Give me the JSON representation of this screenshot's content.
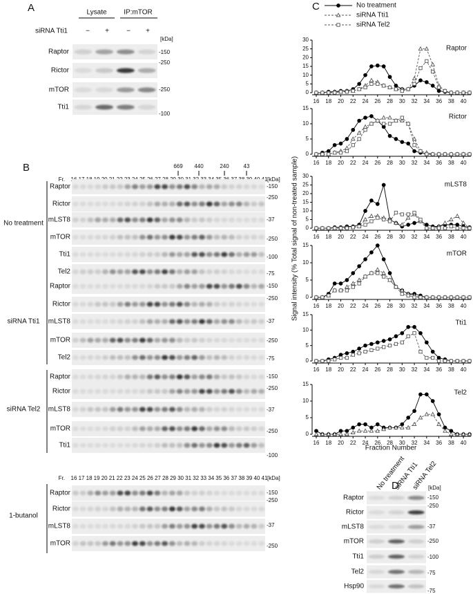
{
  "panel_a": {
    "label": "A",
    "groups": [
      "Lysate",
      "IP:mTOR"
    ],
    "condition": "siRNA Tti1",
    "signs": [
      "−",
      "+",
      "−",
      "+"
    ],
    "unit": "[kDa]",
    "rows": [
      "Raptor",
      "Rictor",
      "mTOR",
      "Tti1"
    ],
    "markers": [
      "-150",
      "-250",
      "-250",
      "-100"
    ]
  },
  "panel_b": {
    "label": "B",
    "size_markers": [
      "669",
      "440",
      "240",
      "43"
    ],
    "fraction_prefix": "Fr.",
    "fractions": [
      16,
      17,
      18,
      19,
      20,
      21,
      22,
      23,
      24,
      25,
      26,
      27,
      28,
      29,
      30,
      31,
      32,
      33,
      34,
      35,
      36,
      37,
      38,
      39,
      40,
      41
    ],
    "unit": "[kDa]",
    "groups": [
      {
        "name": "No treatment",
        "rows": [
          "Raptor",
          "Rictor",
          "mLST8",
          "mTOR",
          "Tti1",
          "Tel2"
        ],
        "markers": [
          "-150",
          "-250",
          "-37",
          "-250",
          "-100",
          "-75"
        ]
      },
      {
        "name": "siRNA Tti1",
        "rows": [
          "Raptor",
          "Rictor",
          "mLST8",
          "mTOR",
          "Tel2"
        ],
        "markers": [
          "-150",
          "-250",
          "-37",
          "-250",
          "-75"
        ]
      },
      {
        "name": "siRNA Tel2",
        "rows": [
          "Raptor",
          "Rictor",
          "mLST8",
          "mTOR",
          "Tti1"
        ],
        "markers": [
          "-150",
          "-250",
          "-37",
          "-250",
          "-100"
        ]
      },
      {
        "name": "1-butanol",
        "rows": [
          "Raptor",
          "Rictor",
          "mLST8",
          "mTOR"
        ],
        "markers": [
          "-150",
          "-250",
          "-37",
          "-250"
        ]
      }
    ]
  },
  "chart_data": {
    "type": "line",
    "label": "C",
    "ylabel": "Signal intensity (% Total signal of non-treated sample)",
    "xlabel": "Fraction Number",
    "x": [
      16,
      17,
      18,
      19,
      20,
      21,
      22,
      23,
      24,
      25,
      26,
      27,
      28,
      29,
      30,
      31,
      32,
      33,
      34,
      35,
      36,
      37,
      38,
      39,
      40,
      41
    ],
    "xlim": [
      16,
      41
    ],
    "xticks": [
      16,
      18,
      20,
      22,
      24,
      26,
      28,
      30,
      32,
      34,
      36,
      38,
      40
    ],
    "series": [
      {
        "name": "No treatment",
        "color": "#000000",
        "marker": "circle",
        "filled": true,
        "dashed": false
      },
      {
        "name": "siRNA Tti1",
        "color": "#555555",
        "marker": "triangle",
        "filled": false,
        "dashed": true
      },
      {
        "name": "siRNA Tel2",
        "color": "#555555",
        "marker": "square",
        "filled": false,
        "dashed": true
      }
    ],
    "panels": [
      {
        "title": "Raptor",
        "ylim": [
          0,
          30
        ],
        "yticks": [
          0,
          5,
          10,
          15,
          20,
          25,
          30
        ],
        "series_values": [
          [
            0,
            0,
            0.5,
            0.5,
            1,
            1,
            2,
            5,
            10,
            15,
            15.5,
            15,
            9,
            4,
            2,
            2,
            4,
            7,
            6,
            4,
            1,
            0.5,
            0,
            0,
            0,
            0
          ],
          [
            0,
            0,
            0,
            0.5,
            0.5,
            1,
            1,
            2,
            4,
            7,
            6,
            4,
            3,
            2,
            2,
            2,
            8,
            25,
            25,
            16,
            4,
            1,
            0,
            0,
            0,
            0
          ],
          [
            0,
            0,
            0,
            0,
            0.5,
            0.5,
            1,
            2,
            3,
            5,
            5,
            4,
            3,
            2,
            1,
            2,
            5,
            14,
            18,
            12,
            3,
            1,
            0,
            0,
            0,
            0
          ]
        ]
      },
      {
        "title": "Rictor",
        "ylim": [
          0,
          15
        ],
        "yticks": [
          0,
          5,
          10,
          15
        ],
        "series_values": [
          [
            0,
            0.5,
            1,
            3,
            3.5,
            5,
            8,
            11,
            12,
            12.5,
            11,
            9,
            6,
            5,
            4,
            3.5,
            1,
            0.5,
            0,
            0,
            0,
            0,
            0,
            0,
            0,
            0
          ],
          [
            0,
            0,
            0,
            0.5,
            1,
            2,
            5,
            7,
            9,
            10,
            11,
            12,
            12,
            11,
            11,
            10,
            5,
            1,
            0.5,
            0,
            0,
            0,
            0,
            0,
            0,
            0
          ],
          [
            0,
            0,
            0,
            0.5,
            0.5,
            1,
            3,
            5,
            8,
            10,
            11,
            10,
            10,
            11,
            12,
            10,
            3,
            1,
            0,
            0,
            0,
            0,
            0,
            0,
            0,
            0
          ]
        ]
      },
      {
        "title": "mLST8",
        "ylim": [
          0,
          30
        ],
        "yticks": [
          0,
          5,
          10,
          15,
          20,
          25,
          30
        ],
        "series_values": [
          [
            0,
            0,
            0,
            0.5,
            0.5,
            1,
            1,
            2,
            10,
            16,
            14,
            25,
            5,
            3,
            1,
            2,
            3,
            4,
            2,
            1,
            1,
            2,
            2,
            2,
            1,
            0.5
          ],
          [
            0,
            0,
            0,
            0,
            0,
            0.5,
            0.5,
            1,
            5,
            7,
            7,
            6,
            5,
            3,
            2,
            6,
            8,
            4,
            0,
            0,
            1,
            3,
            5,
            7,
            3,
            0
          ],
          [
            0,
            0,
            0,
            0,
            0,
            0,
            0.5,
            1,
            2,
            4,
            6,
            5,
            4,
            9,
            8,
            8,
            9,
            5,
            0,
            0,
            0,
            0,
            1,
            0,
            0,
            0
          ]
        ]
      },
      {
        "title": "mTOR",
        "ylim": [
          0,
          15
        ],
        "yticks": [
          0,
          5,
          10,
          15
        ],
        "series_values": [
          [
            0,
            0,
            1,
            4,
            4,
            5,
            7,
            9,
            11,
            13,
            15,
            11,
            7,
            3,
            2,
            1,
            1,
            0.5,
            0,
            0,
            0,
            0,
            0,
            0,
            0,
            0
          ],
          [
            0,
            0,
            0.5,
            2,
            2,
            3,
            4,
            5,
            6,
            7,
            8,
            7,
            5,
            3,
            2,
            1,
            0.5,
            0,
            0,
            0,
            0,
            0,
            0,
            0,
            0,
            0
          ],
          [
            0,
            0,
            0.5,
            2,
            2,
            2,
            3,
            4,
            6,
            7,
            7,
            6,
            5,
            3,
            1,
            0.5,
            0,
            0,
            0,
            0,
            0,
            0,
            0,
            0,
            0,
            0
          ]
        ]
      },
      {
        "title": "Tti1",
        "ylim": [
          0,
          15
        ],
        "yticks": [
          0,
          5,
          10,
          15
        ],
        "series_values": [
          [
            0,
            0,
            0.5,
            1,
            2,
            2.5,
            3,
            4,
            5,
            5.5,
            6,
            6.5,
            7,
            8,
            9,
            11,
            11,
            9,
            6,
            3,
            1,
            0.5,
            0,
            0,
            0,
            0
          ],
          null,
          [
            0,
            0,
            0,
            0.5,
            1,
            1,
            2,
            2.5,
            3,
            3.5,
            4,
            4.5,
            5,
            5.5,
            6,
            8,
            9,
            3,
            1,
            1,
            0,
            0,
            0,
            0,
            0,
            0
          ]
        ]
      },
      {
        "title": "Tel2",
        "ylim": [
          0,
          15
        ],
        "yticks": [
          0,
          5,
          10,
          15
        ],
        "series_values": [
          [
            1,
            0,
            0,
            0,
            1,
            1,
            2,
            3,
            3,
            2,
            3,
            2,
            2,
            2,
            3,
            5,
            7,
            12,
            12,
            10,
            6,
            2,
            1,
            0,
            0,
            0
          ],
          [
            0,
            0,
            0,
            0,
            0,
            0,
            0.5,
            1,
            1,
            1,
            1,
            1.5,
            2,
            2,
            2,
            2,
            3,
            5,
            6,
            6,
            3,
            1,
            0,
            0,
            0,
            0
          ],
          null
        ]
      }
    ]
  },
  "panel_d": {
    "label": "D",
    "columns": [
      "No treatment",
      "siRNA Tti1",
      "siRNA Tel2"
    ],
    "unit": "[kDa]",
    "rows": [
      "Raptor",
      "Rictor",
      "mLST8",
      "mTOR",
      "Tti1",
      "Tel2",
      "Hsp90"
    ],
    "markers": [
      "-150",
      "-250",
      "-37",
      "-250",
      "-100",
      "-75",
      "-75"
    ]
  }
}
